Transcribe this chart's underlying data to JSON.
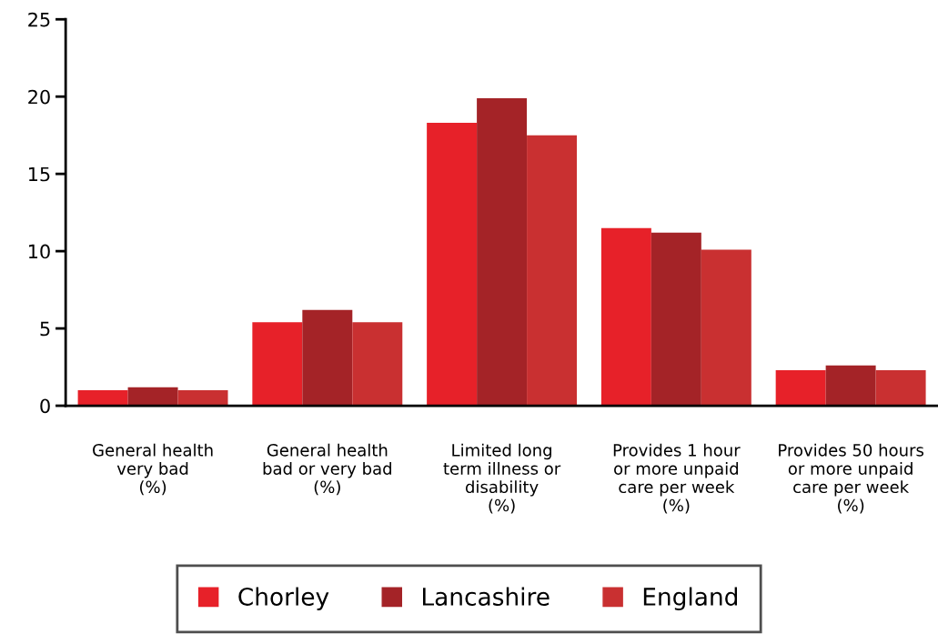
{
  "chart_data": {
    "type": "bar",
    "categories": [
      "General health\nvery bad\n(%)",
      "General health\nbad or very bad\n(%)",
      "Limited long\nterm illness or\ndisability\n(%)",
      "Provides 1 hour\nor more unpaid\ncare per week\n(%)",
      "Provides 50 hours\nor more unpaid\ncare per week\n(%)"
    ],
    "series": [
      {
        "name": "Chorley",
        "color": "#e72129",
        "values": [
          1.0,
          5.4,
          18.3,
          11.5,
          2.3
        ]
      },
      {
        "name": "Lancashire",
        "color": "#a42327",
        "values": [
          1.2,
          6.2,
          19.9,
          11.2,
          2.6
        ]
      },
      {
        "name": "England",
        "color": "#c93031",
        "values": [
          1.0,
          5.4,
          17.5,
          10.1,
          2.3
        ]
      }
    ],
    "ylim": [
      0,
      25
    ],
    "yticks": [
      0,
      5,
      10,
      15,
      20,
      25
    ],
    "grid": false,
    "legend": "bottom"
  }
}
